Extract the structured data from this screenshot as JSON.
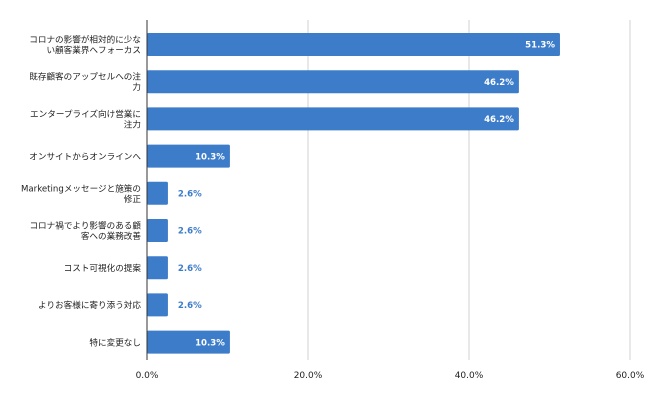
{
  "chart_data": {
    "type": "bar",
    "orientation": "horizontal",
    "categories": [
      [
        "コロナの影響が相対的に少な",
        "い顧客業界へフォーカス"
      ],
      [
        "既存顧客のアップセルへの注",
        "力"
      ],
      [
        "エンタープライズ向け営業に",
        "注力"
      ],
      [
        "オンサイトからオンラインへ"
      ],
      [
        "Marketingメッセージと施策の",
        "修正"
      ],
      [
        "コロナ禍でより影響のある顧",
        "客への業務改善"
      ],
      [
        "コスト可視化の提案"
      ],
      [
        "よりお客様に寄り添う対応"
      ],
      [
        "特に変更なし"
      ]
    ],
    "values": [
      51.3,
      46.2,
      46.2,
      10.3,
      2.6,
      2.6,
      2.6,
      2.6,
      10.3
    ],
    "value_labels": [
      "51.3%",
      "46.2%",
      "46.2%",
      "10.3%",
      "2.6%",
      "2.6%",
      "2.6%",
      "2.6%",
      "10.3%"
    ],
    "xlim": [
      0,
      60
    ],
    "xticks": [
      0,
      20,
      40,
      60
    ],
    "xtick_labels": [
      "0.0%",
      "20.0%",
      "40.0%",
      "60.0%"
    ],
    "grid": true,
    "bar_color": "#3d7cc9",
    "label_inside_color": "#ffffff",
    "label_outside_color": "#3d7cc9",
    "grid_color": "#d0d0d0"
  }
}
